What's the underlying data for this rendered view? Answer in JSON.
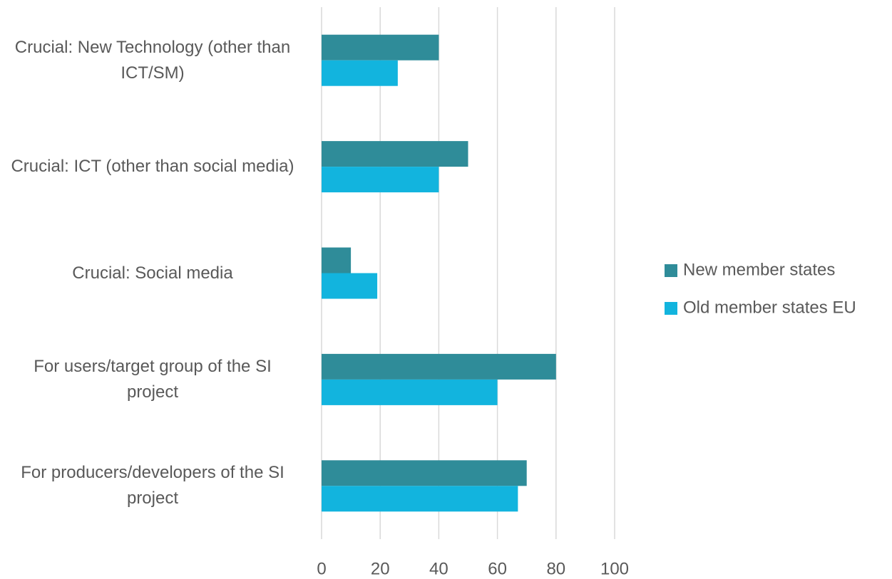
{
  "chart_data": {
    "type": "bar",
    "orientation": "horizontal",
    "categories": [
      "Crucial: New Technology (other than ICT/SM)",
      "Crucial: ICT (other than social media)",
      "Crucial: Social media",
      "For users/target group of the SI project",
      "For producers/developers of the SI project"
    ],
    "series": [
      {
        "name": "New member states",
        "color": "#2f8c99",
        "values": [
          40,
          50,
          10,
          80,
          70
        ]
      },
      {
        "name": "Old member states EU",
        "color": "#12b4de",
        "values": [
          26,
          40,
          19,
          60,
          67
        ]
      }
    ],
    "xlim": [
      0,
      100
    ],
    "xticks": [
      0,
      20,
      40,
      60,
      80,
      100
    ],
    "grid": true,
    "legend": "right"
  }
}
